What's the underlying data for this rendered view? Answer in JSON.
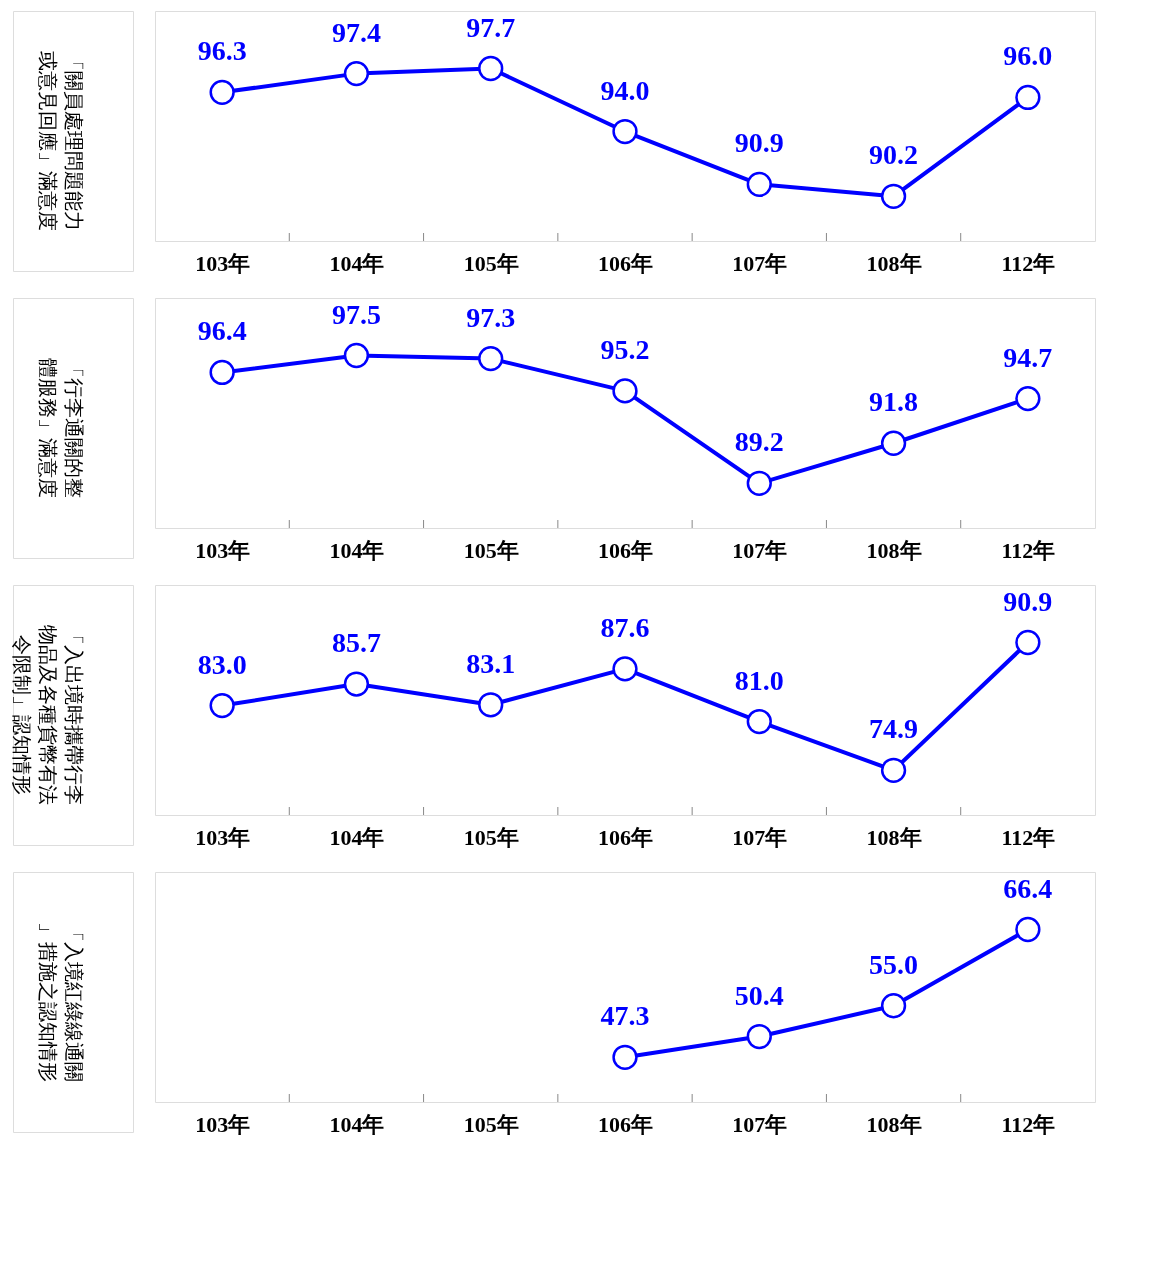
{
  "chart_data": [
    {
      "type": "line",
      "title": "「關員處理問題能力或意見回應」滿意度",
      "categories": [
        "103年",
        "104年",
        "105年",
        "106年",
        "107年",
        "108年",
        "112年"
      ],
      "series": [
        {
          "color": "#0000ff",
          "values": [
            96.3,
            97.4,
            97.7,
            94.0,
            90.9,
            90.2,
            96.0
          ],
          "value_labels": [
            "96.3",
            "97.4",
            "97.7",
            "94.0",
            "90.9",
            "90.2",
            "96.0"
          ]
        }
      ],
      "marker": "circle",
      "line_style": "solid",
      "tick_labels": "x"
    },
    {
      "type": "line",
      "title": "「行李通關的整體服務」滿意度",
      "categories": [
        "103年",
        "104年",
        "105年",
        "106年",
        "107年",
        "108年",
        "112年"
      ],
      "series": [
        {
          "color": "#0000ff",
          "values": [
            96.4,
            97.5,
            97.3,
            95.2,
            89.2,
            91.8,
            94.7
          ],
          "value_labels": [
            "96.4",
            "97.5",
            "97.3",
            "95.2",
            "89.2",
            "91.8",
            "94.7"
          ]
        }
      ],
      "marker": "circle",
      "line_style": "solid",
      "tick_labels": "x"
    },
    {
      "type": "line",
      "title": "「入出境時攜帶行李物品及各種貨幣有法令限制」認知情形",
      "categories": [
        "103年",
        "104年",
        "105年",
        "106年",
        "107年",
        "108年",
        "112年"
      ],
      "series": [
        {
          "color": "#0000ff",
          "values": [
            83.0,
            85.7,
            83.1,
            87.6,
            81.0,
            74.9,
            90.9
          ],
          "value_labels": [
            "83.0",
            "85.7",
            "83.1",
            "87.6",
            "81.0",
            "74.9",
            "90.9"
          ]
        }
      ],
      "marker": "circle",
      "line_style": "solid",
      "tick_labels": "x"
    },
    {
      "type": "line",
      "title": "「入境紅綠線通關」措施之認知情形",
      "categories": [
        "103年",
        "104年",
        "105年",
        "106年",
        "107年",
        "108年",
        "112年"
      ],
      "series": [
        {
          "color": "#0000ff",
          "values": [
            null,
            null,
            null,
            47.3,
            50.4,
            55.0,
            66.4
          ],
          "value_labels": [
            null,
            null,
            null,
            "47.3",
            "50.4",
            "55.0",
            "66.4"
          ]
        }
      ],
      "marker": "circle",
      "line_style": "solid",
      "tick_labels": "x"
    }
  ]
}
